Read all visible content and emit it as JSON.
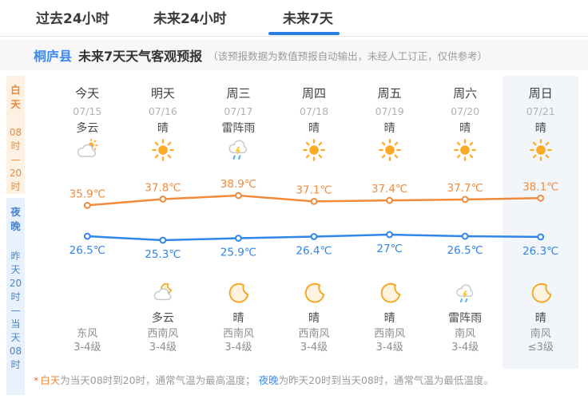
{
  "tabs": [
    {
      "label": "过去24小时",
      "active": false
    },
    {
      "label": "未来24小时",
      "active": false
    },
    {
      "label": "未来7天",
      "active": true
    }
  ],
  "header": {
    "location": "桐庐县",
    "title": "未来7天天气客观预报",
    "note": "（该预报数据为数值预报自动输出，未经人工订正，仅供参考）"
  },
  "sidebar": {
    "day": {
      "label_lines": [
        "白",
        "天"
      ],
      "time_lines": [
        "08",
        "时",
        "—",
        "20",
        "时"
      ],
      "color": "#ea8a3e",
      "bg": "#fdf1e3"
    },
    "night": {
      "label_lines": [
        "夜",
        "晚"
      ],
      "time_lines": [
        "昨",
        "天",
        "20",
        "时",
        "—",
        "当",
        "天",
        "08",
        "时"
      ],
      "color": "#4585cc",
      "bg": "#e9f2fc"
    }
  },
  "columns": [
    {
      "day_name": "今天",
      "date": "07/15",
      "day_condition": "多云",
      "day_icon": "cloud-sun",
      "night_condition": "",
      "night_icon": "",
      "wind_dir": "东风",
      "wind_level": "3-4级",
      "highlight": false
    },
    {
      "day_name": "明天",
      "date": "07/16",
      "day_condition": "晴",
      "day_icon": "sun",
      "night_condition": "多云",
      "night_icon": "cloud-moon",
      "wind_dir": "西南风",
      "wind_level": "3-4级",
      "highlight": false
    },
    {
      "day_name": "周三",
      "date": "07/17",
      "day_condition": "雷阵雨",
      "day_icon": "thunder",
      "night_condition": "晴",
      "night_icon": "moon",
      "wind_dir": "西南风",
      "wind_level": "3-4级",
      "highlight": false
    },
    {
      "day_name": "周四",
      "date": "07/18",
      "day_condition": "晴",
      "day_icon": "sun",
      "night_condition": "晴",
      "night_icon": "moon",
      "wind_dir": "西南风",
      "wind_level": "3-4级",
      "highlight": false
    },
    {
      "day_name": "周五",
      "date": "07/19",
      "day_condition": "晴",
      "day_icon": "sun",
      "night_condition": "晴",
      "night_icon": "moon",
      "wind_dir": "西南风",
      "wind_level": "3-4级",
      "highlight": false
    },
    {
      "day_name": "周六",
      "date": "07/20",
      "day_condition": "晴",
      "day_icon": "sun",
      "night_condition": "雷阵雨",
      "night_icon": "thunder",
      "wind_dir": "南风",
      "wind_level": "3-4级",
      "highlight": false
    },
    {
      "day_name": "周日",
      "date": "07/21",
      "day_condition": "晴",
      "day_icon": "sun",
      "night_condition": "晴",
      "night_icon": "moon",
      "wind_dir": "南风",
      "wind_level": "≤3级",
      "highlight": true
    }
  ],
  "chart_data": {
    "type": "line",
    "x_categories": [
      "今天",
      "明天",
      "周三",
      "周四",
      "周五",
      "周六",
      "周日"
    ],
    "unit": "℃",
    "grid": false,
    "series": [
      {
        "name": "白天最高气温",
        "color": "#f08a3c",
        "values": [
          35.9,
          37.8,
          38.9,
          37.1,
          37.4,
          37.7,
          38.1
        ],
        "labels": [
          "35.9℃",
          "37.8℃",
          "38.9℃",
          "37.1℃",
          "37.4℃",
          "37.7℃",
          "38.1℃"
        ],
        "label_position": "above"
      },
      {
        "name": "夜晚最低气温",
        "color": "#2f86e8",
        "values": [
          26.5,
          25.3,
          25.9,
          26.4,
          27,
          26.5,
          26.3
        ],
        "labels": [
          "26.5℃",
          "25.3℃",
          "25.9℃",
          "26.4℃",
          "27℃",
          "26.5℃",
          "26.3℃"
        ],
        "label_position": "below"
      }
    ],
    "ylim": [
      25,
      39.5
    ]
  },
  "footnote": {
    "star": "*",
    "day_term": "白天",
    "day_text": "为当天08时到20时，通常气温为最高温度；",
    "night_term": "夜晚",
    "night_text": "为昨天20时到当天08时，通常气温为最低温度。"
  },
  "colors": {
    "accent_blue": "#2b7fe3",
    "high_line": "#f08a3c",
    "low_line": "#2f86e8",
    "day_band_bg": "#fdf1e3",
    "night_band_bg": "#e9f2fc",
    "highlight_col_bg": "#f2f6fb"
  }
}
